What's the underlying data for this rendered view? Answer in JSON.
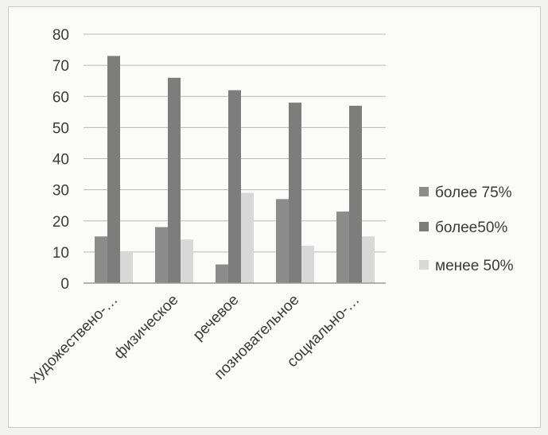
{
  "chart_data": {
    "type": "bar",
    "categories": [
      "художествено-…",
      "физическое",
      "речевое",
      "позновательное",
      "социально-…"
    ],
    "series": [
      {
        "name": "более 75%",
        "color": "#8c8c8c",
        "values": [
          15,
          18,
          6,
          27,
          23
        ]
      },
      {
        "name": "более50%",
        "color": "#7d7d7d",
        "values": [
          73,
          66,
          62,
          58,
          57
        ]
      },
      {
        "name": "менее 50%",
        "color": "#d8d8d8",
        "values": [
          10,
          14,
          29,
          12,
          15
        ]
      }
    ],
    "ylim": [
      0,
      80
    ],
    "yticks": [
      "0",
      "10",
      "20",
      "30",
      "40",
      "50",
      "60",
      "70",
      "80"
    ],
    "grid": true,
    "legend": "right"
  }
}
